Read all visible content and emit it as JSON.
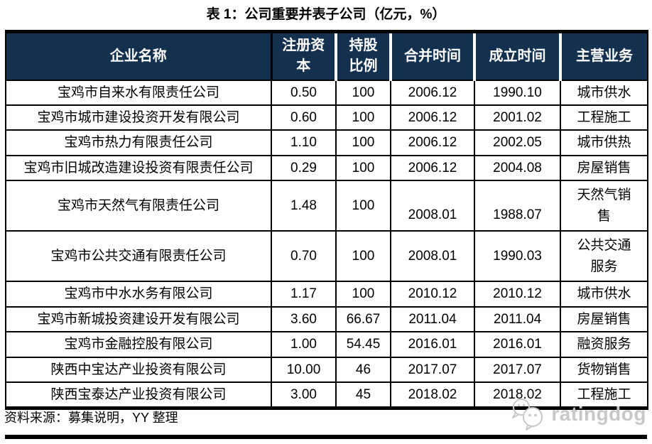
{
  "title": "表 1：公司重要并表子公司（亿元，%）",
  "colors": {
    "header_bg": "#14304F",
    "header_text": "#FFFFFF",
    "border": "#000000",
    "logo": "#C8C8C8"
  },
  "table": {
    "headers": [
      "企业名称",
      "注册资本",
      "持股比例",
      "合并时间",
      "成立时间",
      "主营业务"
    ],
    "rows": [
      {
        "name": "宝鸡市自来水有限责任公司",
        "capital": "0.50",
        "ratio": "100",
        "merged": "2006.12",
        "founded": "1990.10",
        "business": "城市供水"
      },
      {
        "name": "宝鸡市城市建设投资开发有限公司",
        "capital": "0.60",
        "ratio": "100",
        "merged": "2006.12",
        "founded": "2001.02",
        "business": "工程施工"
      },
      {
        "name": "宝鸡市热力有限责任公司",
        "capital": "1.10",
        "ratio": "100",
        "merged": "2006.12",
        "founded": "2002.05",
        "business": "城市供热"
      },
      {
        "name": "宝鸡市旧城改造建设投资有限责任公司",
        "capital": "0.29",
        "ratio": "100",
        "merged": "2006.12",
        "founded": "2004.08",
        "business": "房屋销售"
      },
      {
        "name": "宝鸡市天然气有限责任公司",
        "capital": "1.48",
        "ratio": "100",
        "merged": "2008.01",
        "founded": "1988.07",
        "business": "天然气销售",
        "tall": true,
        "dates_bottom": true
      },
      {
        "name": "宝鸡市公共交通有限责任公司",
        "capital": "0.70",
        "ratio": "100",
        "merged": "2008.01",
        "founded": "1990.03",
        "business": "公共交通服务",
        "tall": true
      },
      {
        "name": "宝鸡市中水水务有限公司",
        "capital": "1.17",
        "ratio": "100",
        "merged": "2010.12",
        "founded": "2010.12",
        "business": "城市供水"
      },
      {
        "name": "宝鸡市新城投资建设开发有限公司",
        "capital": "3.60",
        "ratio": "66.67",
        "merged": "2011.04",
        "founded": "2011.04",
        "business": "房屋销售"
      },
      {
        "name": "宝鸡市金融控股有限公司",
        "capital": "1.00",
        "ratio": "54.45",
        "merged": "2016.01",
        "founded": "2016.01",
        "business": "融资服务"
      },
      {
        "name": "陕西中宝达产业投资有限公司",
        "capital": "10.00",
        "ratio": "46",
        "merged": "2017.07",
        "founded": "2017.07",
        "business": "货物销售"
      },
      {
        "name": "陕西宝泰达产业投资有限公司",
        "capital": "3.00",
        "ratio": "45",
        "merged": "2018.02",
        "founded": "2018.02",
        "business": "工程施工"
      }
    ]
  },
  "footer": {
    "source": "资料来源：募集说明，YY 整理",
    "logo_text": "ratingdog"
  }
}
